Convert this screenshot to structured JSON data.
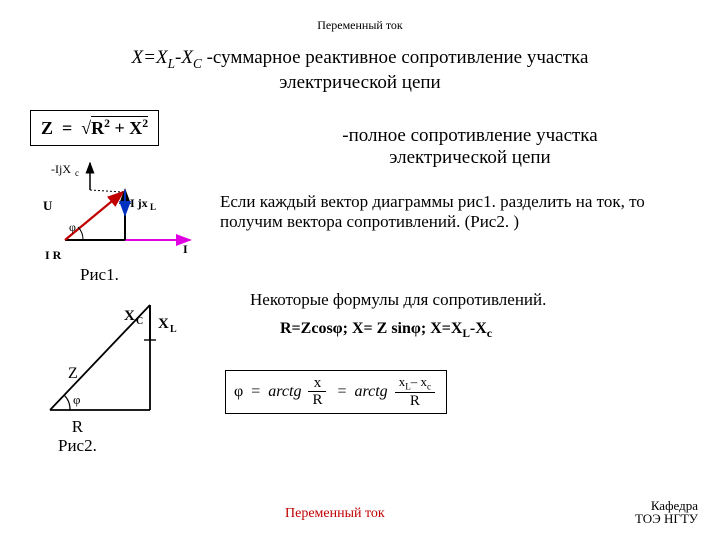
{
  "header": "Переменный ток",
  "title_html": "<i>X=X<span class='sub'>L</span>-X<span class='sub'>C</span></i> -суммарное реактивное сопротивление участка<br>электрической цепи",
  "z_formula_html": "Z &nbsp;= &nbsp;&radic;<span class='sqrt-top'>R<span class='sup'>2</span> + X<span class='sup'>2</span></span>",
  "right1_html": "-полное сопротивление участка<br>электрической цепи",
  "right2": "Если каждый вектор диаграммы рис1. разделить  на ток, то получим вектора сопротивлений. (Рис2. )",
  "ris1": "Рис1.",
  "ris2_html": "R<br>Рис2.",
  "some_formulas": "Некоторые формулы для сопротивлений.",
  "formula_line_html": "R=Zcosφ;  X= Z sinφ;  X=X<span class='sub'>L</span>-X<span class='sub' style='font-size:0.75em'>c</span>",
  "phi_html": "φ &nbsp;= &nbsp;<i>arctg</i> <span class='frac'><span class='num'>x</span><span class='den'>R</span></span> &nbsp;= &nbsp;<i>arctg</i> <span class='frac'><span class='num num2'>x<span class=\"sub\">L</span>– x<span class=\"sub\">c</span></span><span class='den'>R</span></span>",
  "footer_left": "Переменный ток",
  "footer_right_html": "Кафедра<br>ТОЭ НГТУ",
  "diag1": {
    "labels": {
      "minusIjXc": "-IjX",
      "minusIjXc_sub": "c",
      "U": "U",
      "IjxL": "I jxL",
      "I": "I",
      "IR": "I R",
      "phi": "φ"
    },
    "colors": {
      "black": "#000000",
      "red": "#c00000",
      "magenta": "#e000e0",
      "blue": "#0030c0"
    }
  },
  "diag2": {
    "labels": {
      "Xc": "X",
      "Xc_sub": "C",
      "XL": "X",
      "XL_sub": "L",
      "Z": "Z",
      "phi": "φ"
    },
    "color": "#000000"
  }
}
